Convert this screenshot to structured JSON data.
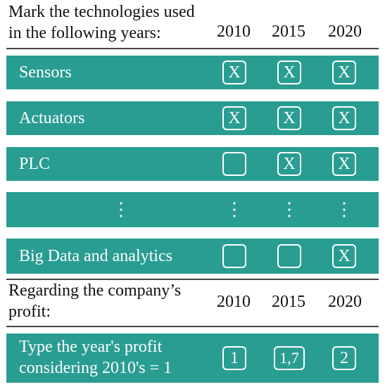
{
  "tech_section": {
    "title_line1": "Mark the technologies used",
    "title_line2": "in the following years:",
    "years": [
      "2010",
      "2015",
      "2020"
    ],
    "rows": [
      {
        "label": "Sensors",
        "marks": [
          "X",
          "X",
          "X"
        ]
      },
      {
        "label": "Actuators",
        "marks": [
          "X",
          "X",
          "X"
        ]
      },
      {
        "label": "PLC",
        "marks": [
          "",
          "X",
          "X"
        ]
      },
      {
        "label": "⋮",
        "marks": [
          "⋮",
          "⋮",
          "⋮"
        ]
      },
      {
        "label": "Big Data and analytics",
        "marks": [
          "",
          "",
          "X"
        ]
      }
    ]
  },
  "profit_section": {
    "title_line1": "Regarding the company’s",
    "title_line2": "profit:",
    "years": [
      "2010",
      "2015",
      "2020"
    ],
    "row_label_line1": "Type the year's profit",
    "row_label_line2": "considering 2010's = 1",
    "values": [
      "1",
      "1,7",
      "2"
    ]
  },
  "colors": {
    "band": "#2a9d92",
    "text_on_band": "#ffffff"
  }
}
